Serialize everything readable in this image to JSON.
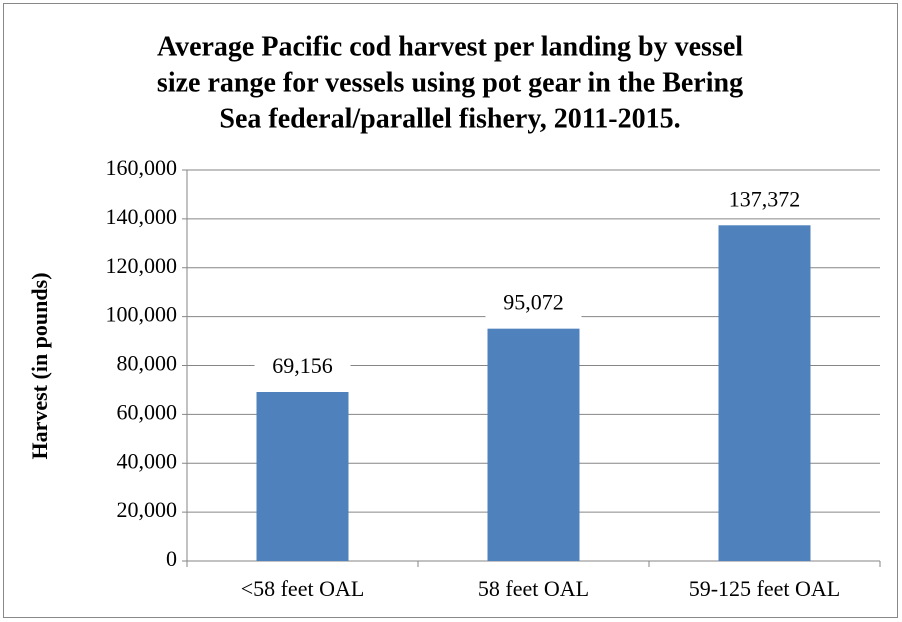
{
  "chart_data": {
    "type": "bar",
    "title": [
      "Average Pacific cod harvest per landing by vessel",
      "size range for vessels using pot gear in the Bering",
      "Sea federal/parallel fishery, 2011-2015."
    ],
    "y_label": "Harvest (in pounds)",
    "categories": [
      "<58 feet OAL",
      "58 feet OAL",
      "59-125 feet OAL"
    ],
    "values": [
      69156,
      95072,
      137372
    ],
    "value_labels": [
      "69,156",
      "95,072",
      "137,372"
    ],
    "color": "#4f81bd",
    "ylim": [
      0,
      160000
    ],
    "yticks": [
      0,
      {
        "value": 20000,
        "label": "20,000"
      },
      {
        "value": 40000,
        "label": "40,000"
      },
      {
        "value": 60000,
        "label": "60,000"
      },
      {
        "value": 80000,
        "label": "80,000"
      },
      {
        "value": 100000,
        "label": "100,000"
      },
      {
        "value": 120000,
        "label": "120,000"
      },
      {
        "value": 140000,
        "label": "140,000"
      },
      {
        "value": 160000,
        "label": "160,000"
      }
    ],
    "grid": true
  }
}
